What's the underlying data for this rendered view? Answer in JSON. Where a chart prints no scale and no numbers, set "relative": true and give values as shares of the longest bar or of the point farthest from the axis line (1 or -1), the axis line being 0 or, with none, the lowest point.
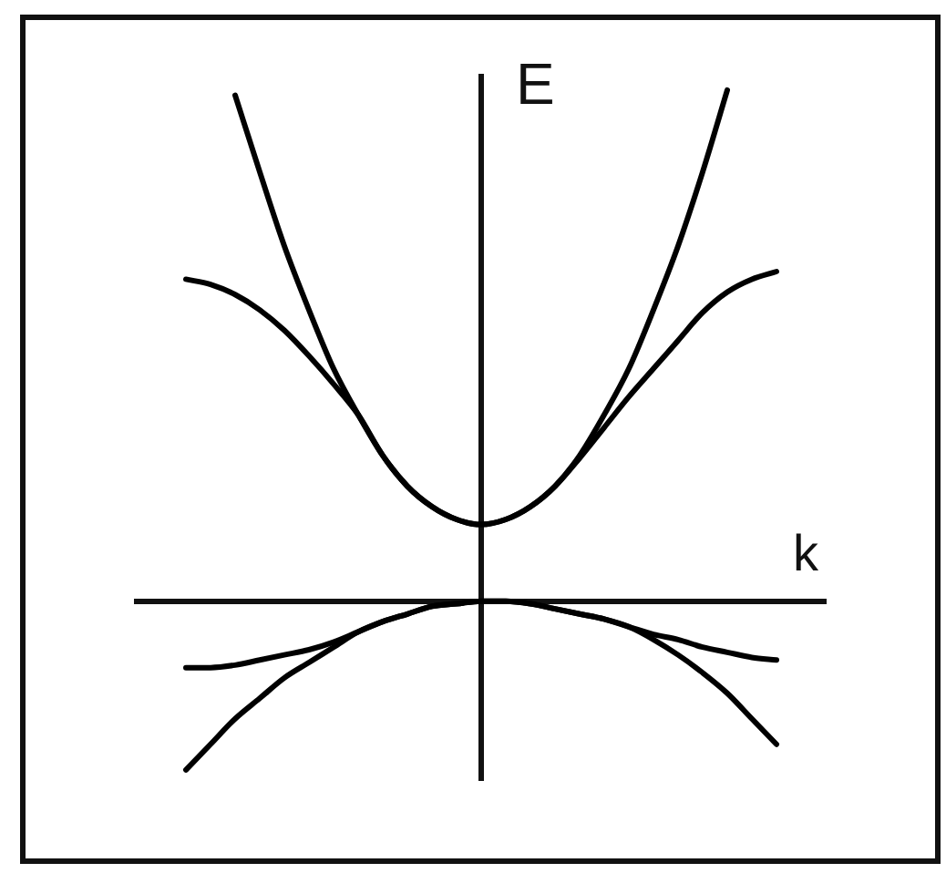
{
  "chart_data": {
    "type": "line",
    "xlabel": "k",
    "ylabel": "E",
    "relative": true,
    "marker": "none",
    "grid": false,
    "legend": false,
    "categories": [
      null,
      null,
      null,
      null,
      null,
      null,
      null,
      null,
      null,
      null,
      null,
      null,
      null,
      null,
      null,
      null,
      null,
      null,
      null,
      null,
      null,
      null,
      null,
      null,
      null,
      null,
      null,
      null,
      null
    ],
    "series": [
      {
        "color": "#000000",
        "values": [
          null,
          null,
          null,
          null,
          0.99,
          0.84,
          0.695,
          0.57,
          0.455,
          0.365,
          0.285,
          0.225,
          0.185,
          0.16,
          0.15,
          0.16,
          0.185,
          0.225,
          0.285,
          0.365,
          0.455,
          0.57,
          0.695,
          0.84,
          1.0,
          null,
          null,
          null,
          null
        ]
      },
      {
        "color": "#000000",
        "values": [
          null,
          null,
          0.63,
          0.62,
          0.6,
          0.57,
          0.53,
          0.48,
          0.425,
          0.365,
          0.285,
          0.225,
          0.185,
          0.16,
          0.15,
          0.16,
          0.185,
          0.225,
          0.28,
          0.34,
          0.4,
          0.455,
          0.51,
          0.565,
          0.605,
          0.63,
          0.645,
          null,
          null
        ]
      },
      {
        "color": "#000000",
        "values": [
          null,
          null,
          -0.13,
          -0.13,
          -0.125,
          -0.115,
          -0.105,
          -0.095,
          -0.08,
          -0.06,
          -0.04,
          -0.025,
          -0.01,
          -0.005,
          0,
          0,
          -0.005,
          -0.015,
          -0.025,
          -0.035,
          -0.05,
          -0.065,
          -0.075,
          -0.09,
          -0.1,
          -0.11,
          -0.115,
          null,
          null
        ]
      },
      {
        "color": "#000000",
        "values": [
          null,
          null,
          -0.33,
          -0.28,
          -0.23,
          -0.19,
          -0.15,
          -0.12,
          -0.09,
          -0.06,
          -0.04,
          -0.025,
          -0.01,
          -0.005,
          0,
          0,
          -0.005,
          -0.015,
          -0.025,
          -0.035,
          -0.05,
          -0.075,
          -0.105,
          -0.14,
          -0.18,
          -0.23,
          -0.28,
          null,
          null
        ]
      }
    ]
  }
}
